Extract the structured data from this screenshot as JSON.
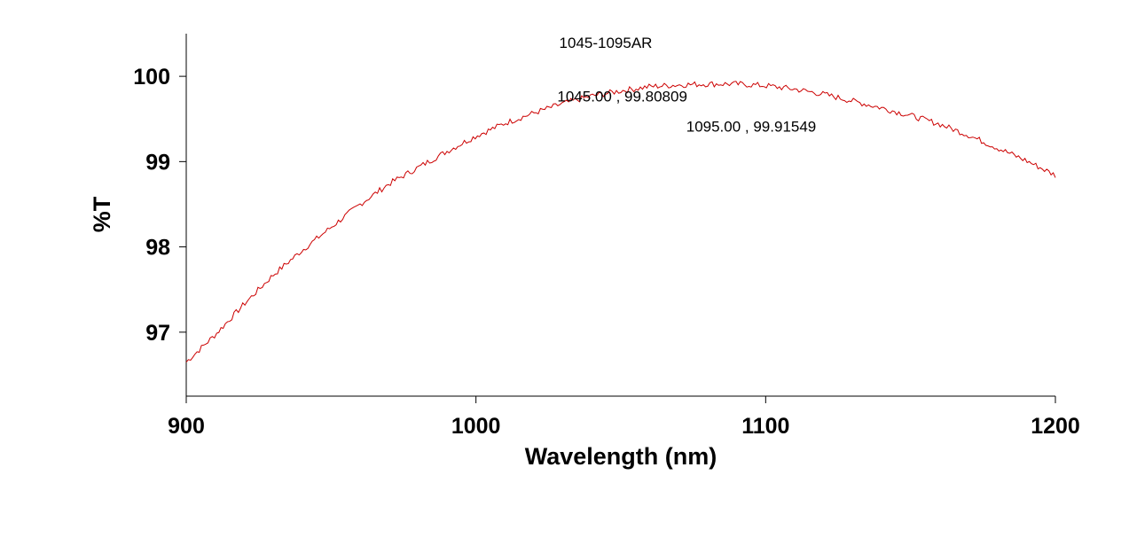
{
  "chart_data": {
    "type": "line",
    "title": "1045-1095AR",
    "xlabel": "Wavelength (nm)",
    "ylabel": "%T",
    "xlim": [
      900,
      1200
    ],
    "ylim": [
      96.25,
      100.5
    ],
    "x_ticks": [
      "900",
      "1000",
      "1100",
      "1200"
    ],
    "y_ticks": [
      "97",
      "98",
      "99",
      "100"
    ],
    "grid": false,
    "series": [
      {
        "color": "#cc0000",
        "x": [
          900,
          910,
          920,
          930,
          940,
          950,
          960,
          970,
          980,
          990,
          1000,
          1010,
          1020,
          1030,
          1040,
          1050,
          1060,
          1070,
          1080,
          1090,
          1100,
          1110,
          1120,
          1130,
          1140,
          1150,
          1160,
          1170,
          1180,
          1190,
          1200
        ],
        "y": [
          96.65,
          96.97,
          97.33,
          97.67,
          97.96,
          98.23,
          98.5,
          98.74,
          98.93,
          99.12,
          99.3,
          99.45,
          99.57,
          99.68,
          99.77,
          99.83,
          99.88,
          99.9,
          99.91,
          99.91,
          99.89,
          99.85,
          99.79,
          99.71,
          99.63,
          99.54,
          99.44,
          99.31,
          99.16,
          99.01,
          98.84
        ]
      }
    ],
    "annotations": [
      {
        "text": "1045.00 , 99.80809",
        "x": 1045.0,
        "y": 99.80809
      },
      {
        "text": "1095.00 , 99.91549",
        "x": 1095.0,
        "y": 99.91549
      }
    ]
  }
}
